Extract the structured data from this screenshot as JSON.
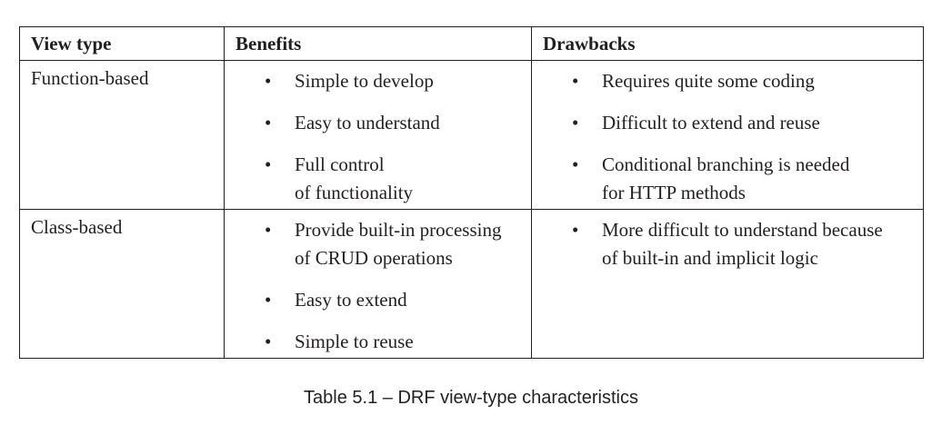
{
  "table": {
    "headers": [
      "View type",
      "Benefits",
      "Drawbacks"
    ],
    "rows": [
      {
        "type": "Function-based",
        "benefits": [
          "Simple to develop",
          "Easy to understand",
          "Full control\nof functionality"
        ],
        "drawbacks": [
          "Requires quite some coding",
          "Difficult to extend and reuse",
          "Conditional branching is needed\nfor HTTP methods"
        ]
      },
      {
        "type": "Class-based",
        "benefits": [
          "Provide built-in processing\nof CRUD operations",
          "Easy to extend",
          "Simple to reuse"
        ],
        "drawbacks": [
          "More difficult to understand because\nof built-in and implicit logic"
        ]
      }
    ]
  },
  "caption": "Table 5.1 – DRF view-type characteristics",
  "bullet_glyph": "•"
}
